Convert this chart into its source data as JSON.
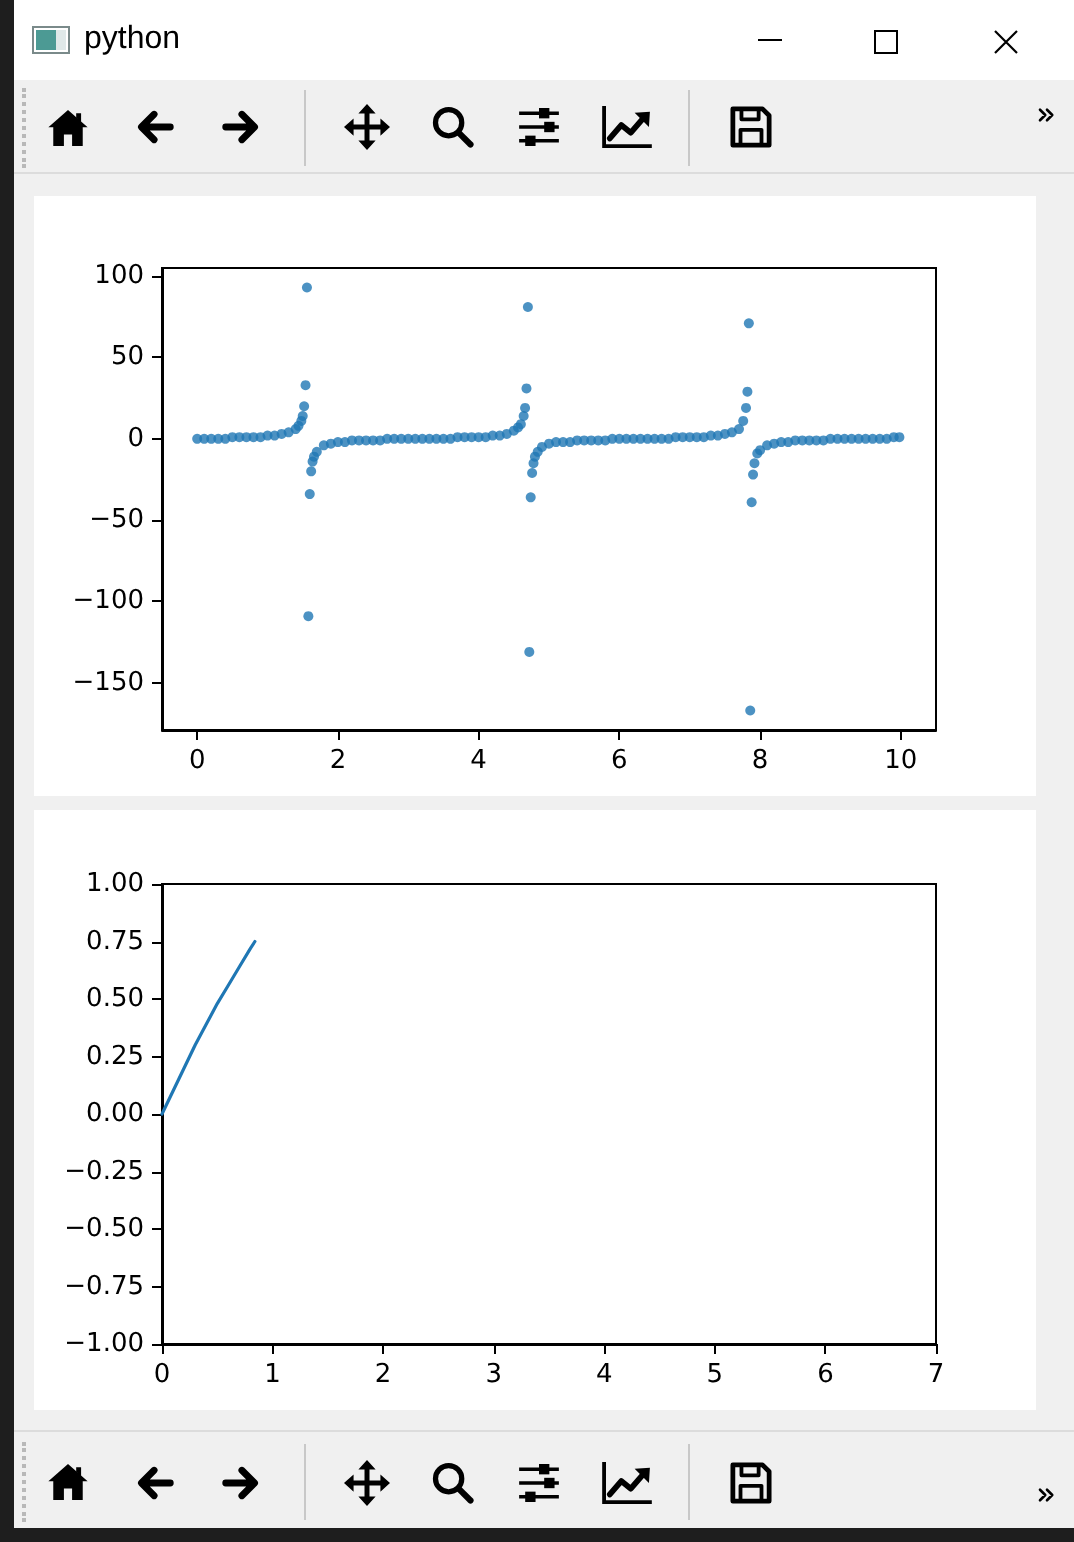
{
  "chart_data": [
    {
      "type": "scatter",
      "annotations": [
        "python"
      ],
      "color": "#1f77b4",
      "marker": "circle",
      "x": [
        0,
        0.1,
        0.2,
        0.3,
        0.4,
        0.5,
        0.6,
        0.7,
        0.8,
        0.9,
        1.0,
        1.1,
        1.2,
        1.3,
        1.4,
        1.44,
        1.48,
        1.5,
        1.52,
        1.54,
        1.56,
        1.58,
        1.6,
        1.62,
        1.64,
        1.66,
        1.7,
        1.8,
        1.9,
        2.0,
        2.1,
        2.2,
        2.3,
        2.4,
        2.5,
        2.6,
        2.7,
        2.8,
        2.9,
        3.0,
        3.1,
        3.2,
        3.3,
        3.4,
        3.5,
        3.6,
        3.7,
        3.8,
        3.9,
        4.0,
        4.1,
        4.2,
        4.3,
        4.4,
        4.5,
        4.56,
        4.6,
        4.64,
        4.66,
        4.68,
        4.7,
        4.72,
        4.74,
        4.76,
        4.78,
        4.8,
        4.84,
        4.9,
        5.0,
        5.1,
        5.2,
        5.3,
        5.4,
        5.5,
        5.6,
        5.7,
        5.8,
        5.9,
        6.0,
        6.1,
        6.2,
        6.3,
        6.4,
        6.5,
        6.6,
        6.7,
        6.8,
        6.9,
        7.0,
        7.1,
        7.2,
        7.3,
        7.4,
        7.5,
        7.6,
        7.7,
        7.76,
        7.8,
        7.82,
        7.84,
        7.86,
        7.88,
        7.9,
        7.92,
        7.96,
        8.0,
        8.1,
        8.2,
        8.3,
        8.4,
        8.5,
        8.6,
        8.7,
        8.8,
        8.9,
        9.0,
        9.1,
        9.2,
        9.3,
        9.4,
        9.5,
        9.6,
        9.7,
        9.8,
        9.9,
        9.98
      ],
      "values": [
        0,
        0,
        0,
        0,
        0,
        1,
        1,
        1,
        1,
        1,
        2,
        2,
        3,
        4,
        6,
        8,
        11,
        14,
        20,
        33,
        93,
        -109,
        -34,
        -20,
        -14,
        -11,
        -8,
        -4,
        -3,
        -2,
        -2,
        -1,
        -1,
        -1,
        -1,
        -1,
        0,
        0,
        0,
        0,
        0,
        0,
        0,
        0,
        0,
        0,
        1,
        1,
        1,
        1,
        1,
        2,
        2,
        3,
        5,
        7,
        9,
        14,
        19,
        31,
        81,
        -131,
        -36,
        -21,
        -15,
        -11,
        -8,
        -5,
        -3,
        -2,
        -2,
        -2,
        -1,
        -1,
        -1,
        -1,
        -1,
        0,
        0,
        0,
        0,
        0,
        0,
        0,
        0,
        0,
        1,
        1,
        1,
        1,
        1,
        2,
        2,
        3,
        4,
        6,
        11,
        19,
        29,
        71,
        -167,
        -39,
        -22,
        -15,
        -9,
        -7,
        -4,
        -3,
        -2,
        -2,
        -1,
        -1,
        -1,
        -1,
        -1,
        0,
        0,
        0,
        0,
        0,
        0,
        0,
        0,
        0,
        1,
        1
      ],
      "xlim": [
        -0.5,
        10.5
      ],
      "ylim": [
        -179,
        105
      ],
      "xticks": [
        0,
        2,
        4,
        6,
        8,
        10
      ],
      "yticks": [
        {
          "value": -150,
          "label": "−150"
        },
        {
          "value": -100,
          "label": "−100"
        },
        {
          "value": -50,
          "label": "−50"
        },
        0,
        50,
        100
      ]
    },
    {
      "type": "line",
      "color": "#1f77b4",
      "line_style": "solid",
      "x": [
        0,
        0.1,
        0.2,
        0.3,
        0.4,
        0.5,
        0.6,
        0.7,
        0.8,
        0.84
      ],
      "values": [
        0,
        0.1,
        0.2,
        0.3,
        0.39,
        0.48,
        0.56,
        0.64,
        0.72,
        0.75
      ],
      "xlim": [
        0,
        7
      ],
      "ylim": [
        -1,
        1
      ],
      "xticks": [
        0,
        1,
        2,
        3,
        4,
        5,
        6,
        7
      ],
      "yticks": [
        {
          "value": -1,
          "label": "−1.00"
        },
        {
          "value": -0.75,
          "label": "−0.75"
        },
        {
          "value": -0.5,
          "label": "−0.50"
        },
        {
          "value": -0.25,
          "label": "−0.25"
        },
        {
          "value": 0,
          "label": "0.00"
        },
        {
          "value": 0.25,
          "label": "0.25"
        },
        {
          "value": 0.5,
          "label": "0.50"
        },
        {
          "value": 0.75,
          "label": "0.75"
        },
        {
          "value": 1,
          "label": "1.00"
        }
      ]
    }
  ]
}
